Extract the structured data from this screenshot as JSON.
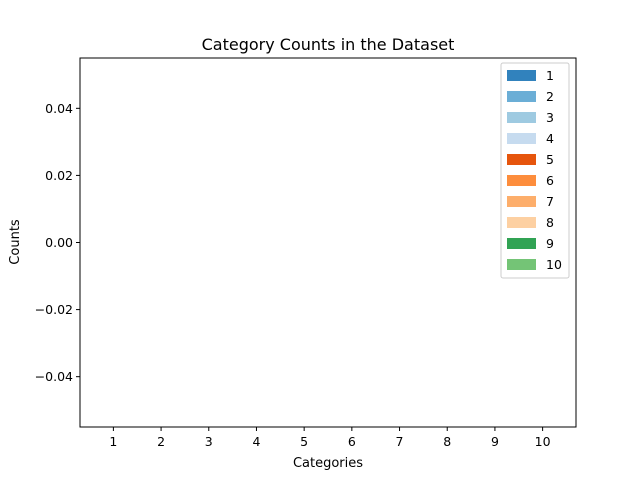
{
  "chart_data": {
    "type": "bar",
    "title": "Category Counts in the Dataset",
    "xlabel": "Categories",
    "ylabel": "Counts",
    "categories": [
      "1",
      "2",
      "3",
      "4",
      "5",
      "6",
      "7",
      "8",
      "9",
      "10"
    ],
    "values": [
      0,
      0,
      0,
      0,
      0,
      0,
      0,
      0,
      0,
      0
    ],
    "ylim": [
      -0.055,
      0.055
    ],
    "yticks": [
      -0.04,
      -0.02,
      0.0,
      0.02,
      0.04
    ],
    "ytick_labels": [
      "−0.04",
      "−0.02",
      "0.00",
      "0.02",
      "0.04"
    ],
    "grid": false,
    "legend_position": "top-right",
    "legend": [
      {
        "label": "1",
        "color": "#3182bd"
      },
      {
        "label": "2",
        "color": "#6baed6"
      },
      {
        "label": "3",
        "color": "#9ecae1"
      },
      {
        "label": "4",
        "color": "#c6dbef"
      },
      {
        "label": "5",
        "color": "#e6550d"
      },
      {
        "label": "6",
        "color": "#fd8d3c"
      },
      {
        "label": "7",
        "color": "#fdae6b"
      },
      {
        "label": "8",
        "color": "#fdd0a2"
      },
      {
        "label": "9",
        "color": "#31a354"
      },
      {
        "label": "10",
        "color": "#74c476"
      }
    ]
  }
}
